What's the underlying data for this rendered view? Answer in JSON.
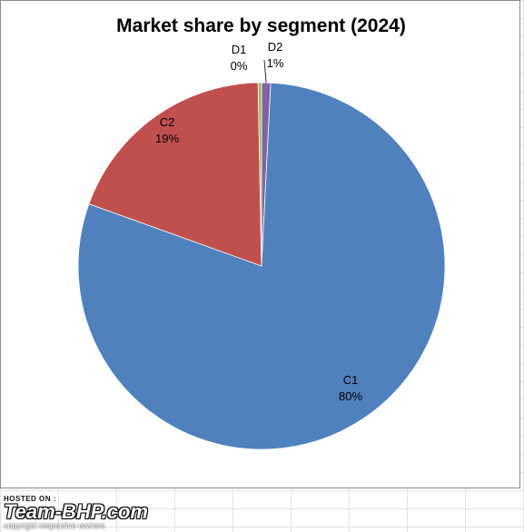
{
  "chart_data": {
    "type": "pie",
    "title": "Market share by segment (2024)",
    "slices": [
      {
        "label": "D2",
        "value": 0.8,
        "display": "1%",
        "color": "#8064A2"
      },
      {
        "label": "C1",
        "value": 79.7,
        "display": "80%",
        "color": "#4F81BD"
      },
      {
        "label": "C2",
        "value": 19.2,
        "display": "19%",
        "color": "#C0504D"
      },
      {
        "label": "D1",
        "value": 0.3,
        "display": "0%",
        "color": "#9BBB59"
      }
    ],
    "legend": "none",
    "start_angle": "12 o'clock, clockwise"
  },
  "watermark": {
    "hosted_on": "HOSTED ON :",
    "brand": "Team-BHP.com",
    "copyright": "copyright respective owners"
  }
}
